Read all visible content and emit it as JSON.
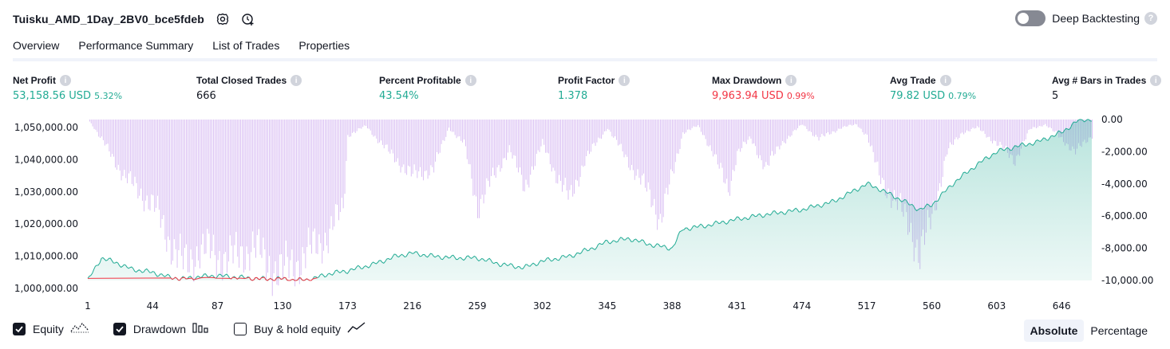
{
  "header": {
    "strategy_name": "Tuisku_AMD_1Day_2BV0_bce5fdeb",
    "icons": [
      "settings-icon",
      "add-alert-icon"
    ]
  },
  "deep_backtesting": {
    "label": "Deep Backtesting",
    "enabled": false
  },
  "tabs": [
    {
      "label": "Overview",
      "active": true
    },
    {
      "label": "Performance Summary",
      "active": false
    },
    {
      "label": "List of Trades",
      "active": false
    },
    {
      "label": "Properties",
      "active": false
    }
  ],
  "metrics": [
    {
      "label": "Net Profit",
      "value": "53,158.56 USD",
      "pct": "5.32%",
      "tone": "pos"
    },
    {
      "label": "Total Closed Trades",
      "value": "666",
      "pct": "",
      "tone": "neu"
    },
    {
      "label": "Percent Profitable",
      "value": "43.54%",
      "pct": "",
      "tone": "pos"
    },
    {
      "label": "Profit Factor",
      "value": "1.378",
      "pct": "",
      "tone": "pos"
    },
    {
      "label": "Max Drawdown",
      "value": "9,963.94 USD",
      "pct": "0.99%",
      "tone": "neg"
    },
    {
      "label": "Avg Trade",
      "value": "79.82 USD",
      "pct": "0.79%",
      "tone": "pos"
    },
    {
      "label": "Avg # Bars in Trades",
      "value": "5",
      "pct": "",
      "tone": "neu"
    }
  ],
  "chart_data": {
    "type": "area",
    "title": "",
    "xlabel": "",
    "ylabel": "",
    "x_ticks": [
      "1",
      "44",
      "87",
      "130",
      "173",
      "216",
      "259",
      "302",
      "345",
      "388",
      "431",
      "474",
      "517",
      "560",
      "603",
      "646"
    ],
    "xlim": [
      1,
      666
    ],
    "y_left_ticks": [
      "1,050,000.00",
      "1,040,000.00",
      "1,030,000.00",
      "1,020,000.00",
      "1,010,000.00",
      "1,000,000.00"
    ],
    "y_left_range": [
      1000000,
      1050000
    ],
    "y_right_ticks": [
      "0.00",
      "-2,000.00",
      "-4,000.00",
      "-6,000.00",
      "-8,000.00",
      "-10,000.00"
    ],
    "y_right_range": [
      -10000,
      0
    ],
    "grid": false,
    "series": [
      {
        "name": "Equity",
        "type": "area",
        "color": "#22ab94",
        "x": [
          1,
          10,
          20,
          30,
          44,
          55,
          65,
          75,
          87,
          100,
          115,
          130,
          140,
          150,
          160,
          173,
          190,
          205,
          216,
          230,
          245,
          259,
          275,
          290,
          302,
          320,
          335,
          345,
          360,
          375,
          388,
          395,
          410,
          431,
          450,
          474,
          495,
          517,
          525,
          540,
          552,
          560,
          575,
          590,
          603,
          615,
          630,
          646,
          658,
          666
        ],
        "values": [
          1000000,
          1007000,
          1005500,
          1003500,
          1002500,
          1001000,
          1000500,
          1001200,
          1001500,
          1001000,
          1000500,
          1000500,
          1000000,
          1000500,
          1002000,
          1003000,
          1005000,
          1007500,
          1008500,
          1007500,
          1007000,
          1007000,
          1005000,
          1004000,
          1006000,
          1007500,
          1010000,
          1012000,
          1013000,
          1011000,
          1010000,
          1016000,
          1017000,
          1019000,
          1020500,
          1022000,
          1024500,
          1030000,
          1028500,
          1025000,
          1022000,
          1023500,
          1030500,
          1036000,
          1040000,
          1041500,
          1043000,
          1046000,
          1050000,
          1050000
        ]
      },
      {
        "name": "Drawdown",
        "type": "bar",
        "color": "#d6b9f2",
        "x": [
          1,
          5,
          15,
          25,
          35,
          44,
          55,
          65,
          75,
          87,
          100,
          110,
          120,
          130,
          140,
          150,
          160,
          170,
          173,
          185,
          200,
          216,
          230,
          240,
          250,
          259,
          270,
          280,
          290,
          302,
          310,
          320,
          330,
          345,
          355,
          365,
          375,
          380,
          388,
          395,
          405,
          415,
          425,
          431,
          440,
          450,
          460,
          474,
          485,
          500,
          510,
          517,
          525,
          535,
          545,
          552,
          560,
          570,
          580,
          590,
          603,
          615,
          625,
          635,
          646,
          655,
          666
        ],
        "values": [
          0,
          -500,
          -2000,
          -3500,
          -4500,
          -5300,
          -7500,
          -9200,
          -8000,
          -8500,
          -8600,
          -7800,
          -9000,
          -9500,
          -8800,
          -8000,
          -7200,
          -5500,
          -1000,
          -400,
          -2000,
          -3500,
          -3000,
          -500,
          -1500,
          -5400,
          -3500,
          -1800,
          -4200,
          -1500,
          -3200,
          -5000,
          -2500,
          -500,
          -2000,
          -3500,
          -5000,
          -6200,
          -3500,
          -800,
          -400,
          -2000,
          -4500,
          -2000,
          -1200,
          -3000,
          -1500,
          -300,
          -1200,
          -500,
          -300,
          -1000,
          -3500,
          -5000,
          -6500,
          -8500,
          -6000,
          -2000,
          -800,
          -500,
          -1500,
          -2500,
          -600,
          -300,
          -1200,
          -2000,
          -1000
        ]
      }
    ],
    "legend_position": "bottom-left"
  },
  "legend": [
    {
      "label": "Equity",
      "checked": true,
      "icon": "equity-line-icon"
    },
    {
      "label": "Drawdown",
      "checked": true,
      "icon": "drawdown-bars-icon"
    },
    {
      "label": "Buy & hold equity",
      "checked": false,
      "icon": "buy-hold-line-icon"
    }
  ],
  "modes": [
    {
      "label": "Absolute",
      "active": true
    },
    {
      "label": "Percentage",
      "active": false
    }
  ]
}
